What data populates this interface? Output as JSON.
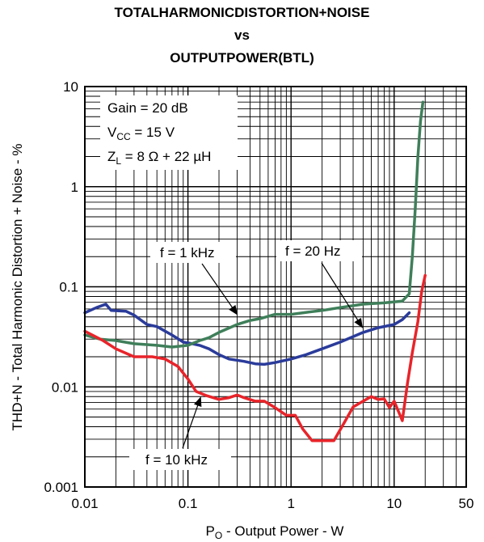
{
  "chart_data": {
    "type": "line",
    "title": [
      "TOTALHARMONICDISTORTION+NOISE",
      "vs",
      "OUTPUTPOWER(BTL)"
    ],
    "xlabel": {
      "main": "P",
      "sub": "O",
      "rest": " - Output Power - W"
    },
    "ylabel": "THD+N - Total Harmonic Distortion + Noise - %",
    "x_scale": "log",
    "y_scale": "log",
    "xlim": [
      0.01,
      50
    ],
    "ylim": [
      0.001,
      10
    ],
    "grid": true,
    "x_ticks": [
      {
        "value": 0.01,
        "label": "0.01"
      },
      {
        "value": 0.1,
        "label": "0.1"
      },
      {
        "value": 1,
        "label": "1"
      },
      {
        "value": 10,
        "label": "10"
      },
      {
        "value": 50,
        "label": "50"
      }
    ],
    "y_ticks": [
      {
        "value": 10,
        "label": "10"
      },
      {
        "value": 1,
        "label": "1"
      },
      {
        "value": 0.1,
        "label": "0.1"
      },
      {
        "value": 0.01,
        "label": "0.01"
      },
      {
        "value": 0.001,
        "label": "0.001"
      }
    ],
    "conditions": {
      "gain": "Gain = 20 dB",
      "vcc": {
        "main": "V",
        "sub": "CC",
        "rest": " = 15 V"
      },
      "zl": {
        "main": "Z",
        "sub": "L",
        "rest": " = 8 Ω + 22 µH"
      }
    },
    "series": [
      {
        "name": "f = 20 Hz",
        "color": "#2a3b9a",
        "x": [
          0.01,
          0.013,
          0.016,
          0.018,
          0.025,
          0.03,
          0.04,
          0.05,
          0.07,
          0.09,
          0.11,
          0.13,
          0.16,
          0.2,
          0.25,
          0.35,
          0.45,
          0.55,
          0.7,
          1.0,
          1.4,
          2.0,
          3.0,
          5.0,
          7.0,
          10.0,
          12.0,
          14.0
        ],
        "y": [
          0.055,
          0.062,
          0.067,
          0.058,
          0.057,
          0.052,
          0.042,
          0.04,
          0.033,
          0.028,
          0.027,
          0.026,
          0.024,
          0.021,
          0.019,
          0.018,
          0.017,
          0.0168,
          0.0175,
          0.019,
          0.021,
          0.024,
          0.028,
          0.035,
          0.039,
          0.042,
          0.047,
          0.055
        ]
      },
      {
        "name": "f = 1 kHz",
        "color": "#3f7f5a",
        "x": [
          0.01,
          0.014,
          0.02,
          0.03,
          0.05,
          0.07,
          0.1,
          0.13,
          0.16,
          0.2,
          0.3,
          0.4,
          0.5,
          0.7,
          1.0,
          1.5,
          2.0,
          3.0,
          5.0,
          8.0,
          12.0,
          14.0,
          15.0,
          16.0,
          17.0,
          18.0,
          19.0
        ],
        "y": [
          0.033,
          0.03,
          0.029,
          0.027,
          0.026,
          0.025,
          0.026,
          0.029,
          0.031,
          0.035,
          0.042,
          0.046,
          0.048,
          0.053,
          0.053,
          0.056,
          0.058,
          0.062,
          0.067,
          0.069,
          0.072,
          0.085,
          0.2,
          0.6,
          2.0,
          4.5,
          7.0
        ]
      },
      {
        "name": "f = 10 kHz",
        "color": "#e8242a",
        "x": [
          0.01,
          0.015,
          0.02,
          0.03,
          0.045,
          0.06,
          0.08,
          0.1,
          0.12,
          0.15,
          0.2,
          0.25,
          0.3,
          0.35,
          0.45,
          0.55,
          0.7,
          0.9,
          1.1,
          1.3,
          1.6,
          2.0,
          2.6,
          3.2,
          4.0,
          5.0,
          6.0,
          7.0,
          8.0,
          9.0,
          10.0,
          11.0,
          12.0,
          13.5,
          15.0,
          17.0,
          18.5,
          20.0
        ],
        "y": [
          0.036,
          0.029,
          0.024,
          0.02,
          0.02,
          0.019,
          0.016,
          0.012,
          0.009,
          0.0082,
          0.0075,
          0.0078,
          0.0083,
          0.0078,
          0.0072,
          0.0072,
          0.0062,
          0.0052,
          0.0052,
          0.0038,
          0.0029,
          0.0029,
          0.0029,
          0.0042,
          0.0063,
          0.0072,
          0.008,
          0.0075,
          0.0076,
          0.0062,
          0.0072,
          0.0057,
          0.0046,
          0.011,
          0.022,
          0.045,
          0.09,
          0.13
        ]
      }
    ]
  }
}
